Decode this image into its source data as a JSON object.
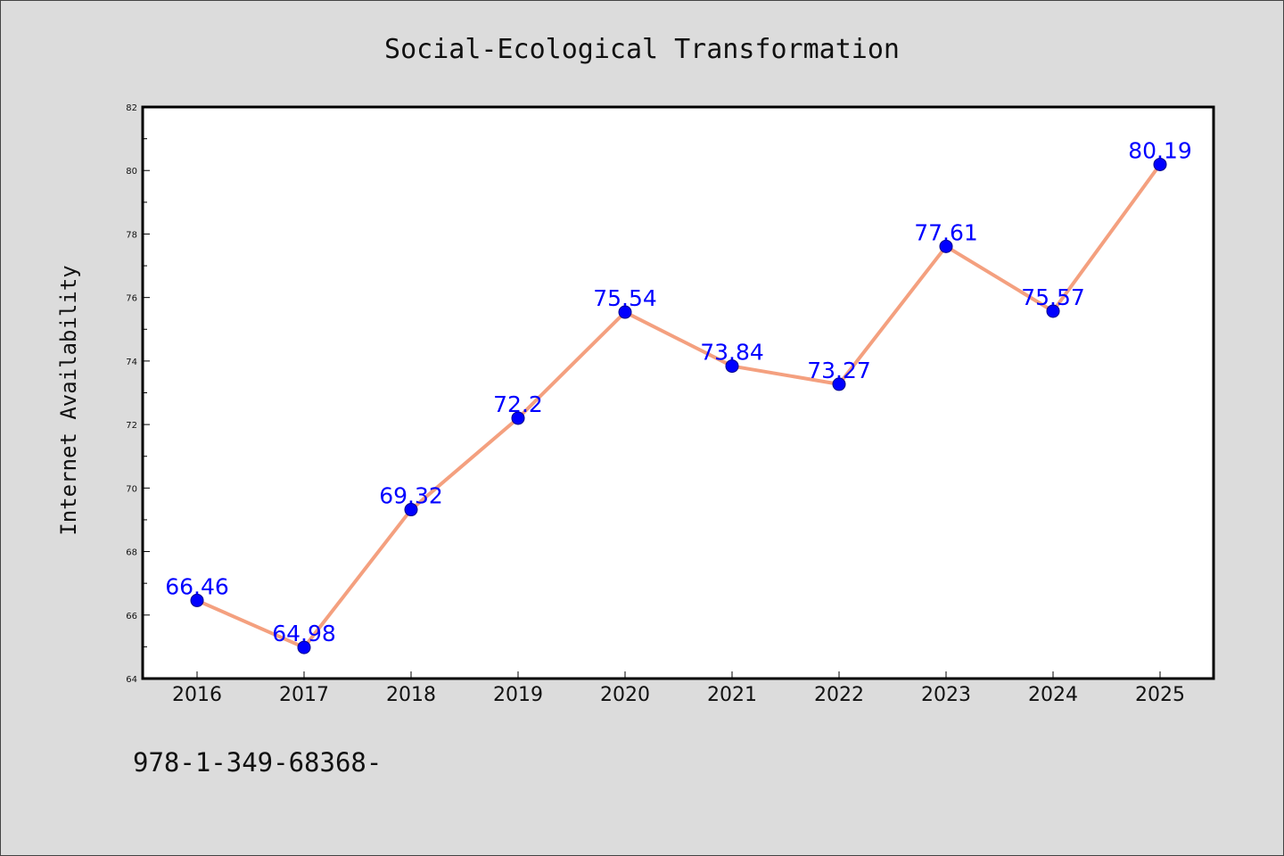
{
  "colors": {
    "background": "#dcdcdc",
    "plot_background": "#ffffff",
    "line": "#f4a07f",
    "marker": "#0000ff",
    "data_label": "#0000ff",
    "axis": "#000000"
  },
  "footnote": "978-1-349-68368-",
  "chart_data": {
    "type": "line",
    "title": "Social-Ecological Transformation",
    "xlabel": "",
    "ylabel": "Internet Availability",
    "categories": [
      "2016",
      "2017",
      "2018",
      "2019",
      "2020",
      "2021",
      "2022",
      "2023",
      "2024",
      "2025"
    ],
    "values": [
      66.46,
      64.98,
      69.32,
      72.2,
      75.54,
      73.84,
      73.27,
      77.61,
      75.57,
      80.19
    ],
    "data_labels": [
      "66.46",
      "64.98",
      "69.32",
      "72.2",
      "75.54",
      "73.84",
      "73.27",
      "77.61",
      "75.57",
      "80.19"
    ],
    "ylim": [
      64,
      82
    ],
    "yticks": [
      64,
      66,
      68,
      70,
      72,
      74,
      76,
      78,
      80,
      82
    ],
    "ytick_labels": [
      "64",
      "66",
      "68",
      "70",
      "72",
      "74",
      "76",
      "78",
      "80",
      "82"
    ],
    "grid": false,
    "legend": false
  }
}
